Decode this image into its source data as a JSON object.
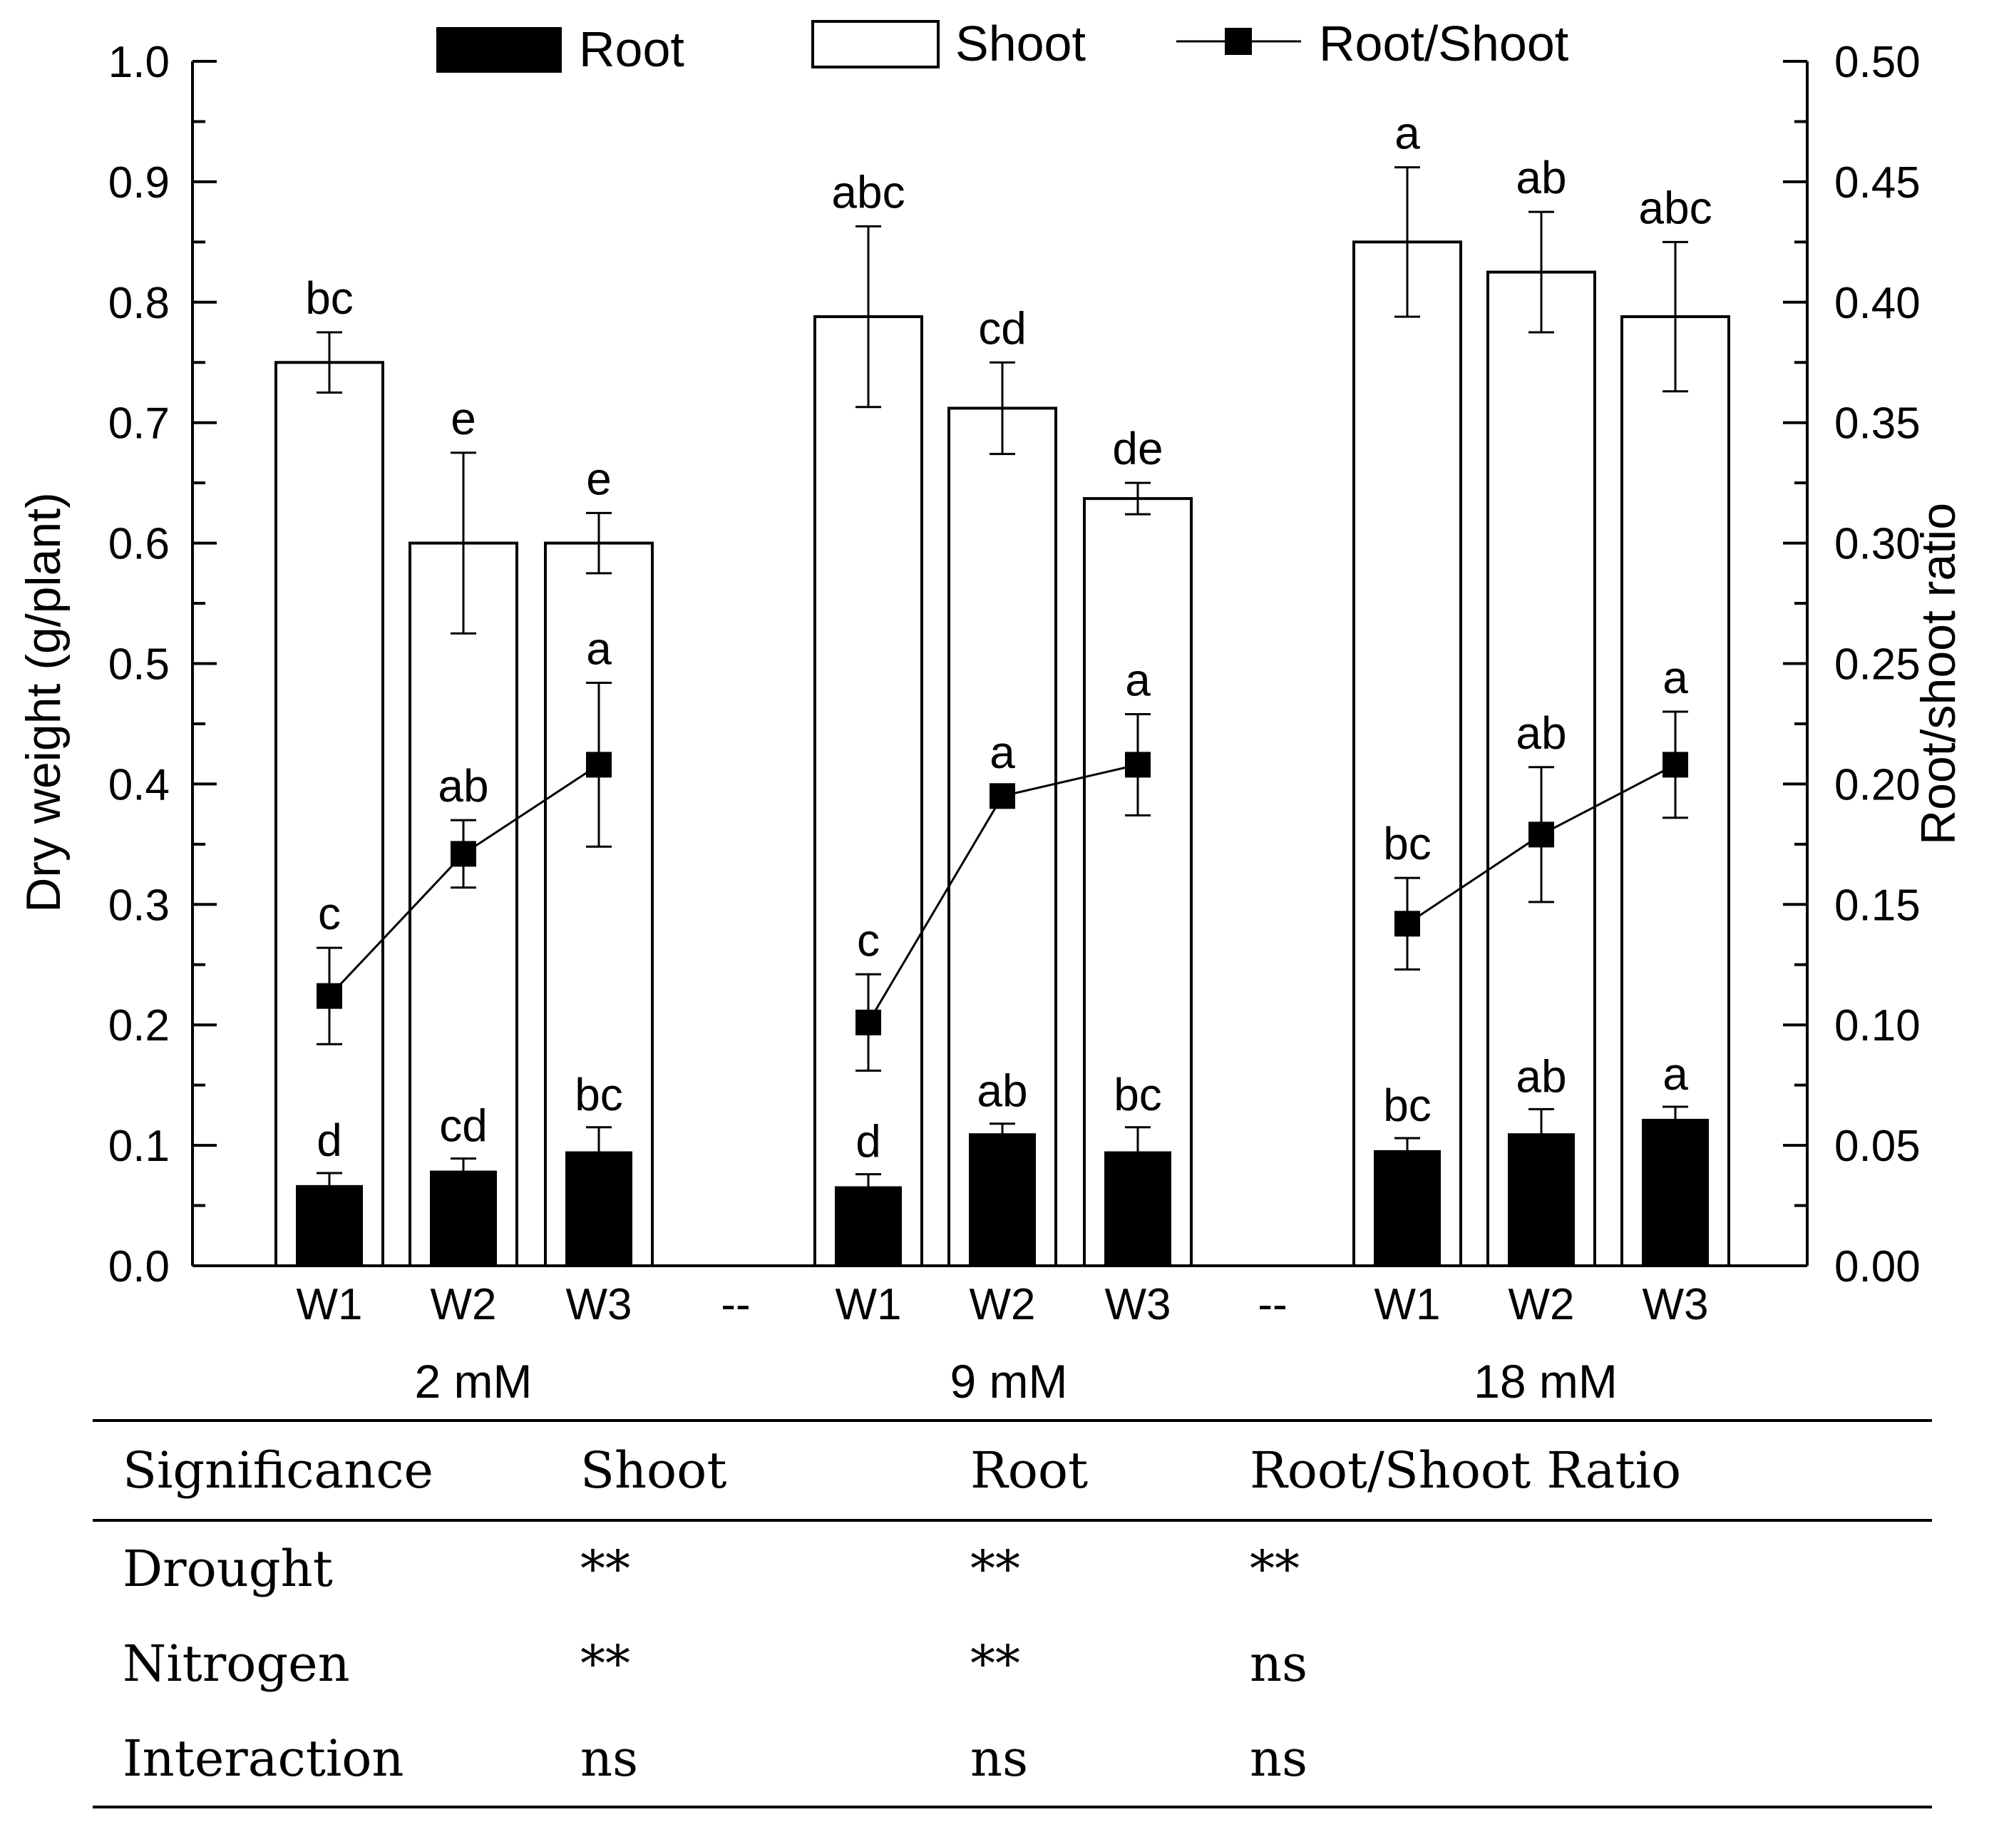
{
  "chart_data": {
    "type": "bar",
    "ylabel": "Dry weight (g/plant)",
    "ylabel_right": "Root/shoot ratio",
    "ylim": [
      0,
      1.0
    ],
    "ylim_right": [
      0,
      0.5
    ],
    "y_ticks": [
      "0.0",
      "0.1",
      "0.2",
      "0.3",
      "0.4",
      "0.5",
      "0.6",
      "0.7",
      "0.8",
      "0.9",
      "1.0"
    ],
    "y_ticks_right": [
      "0.00",
      "0.05",
      "0.10",
      "0.15",
      "0.20",
      "0.25",
      "0.30",
      "0.35",
      "0.40",
      "0.45",
      "0.50"
    ],
    "separator_label": "--",
    "groups": [
      {
        "label": "2 mM",
        "categories": [
          "W1",
          "W2",
          "W3"
        ]
      },
      {
        "label": "9 mM",
        "categories": [
          "W1",
          "W2",
          "W3"
        ]
      },
      {
        "label": "18 mM",
        "categories": [
          "W1",
          "W2",
          "W3"
        ]
      }
    ],
    "legend": [
      "Root",
      "Shoot",
      "Root/Shoot"
    ],
    "legend_position": "top",
    "series": [
      {
        "name": "Shoot",
        "axis": "left",
        "values": [
          0.75,
          0.6,
          0.6,
          0.788,
          0.712,
          0.637,
          0.85,
          0.825,
          0.788
        ],
        "errors": [
          0.025,
          0.075,
          0.025,
          0.075,
          0.038,
          0.013,
          0.062,
          0.05,
          0.062
        ],
        "letters": [
          "bc",
          "e",
          "e",
          "abc",
          "cd",
          "de",
          "a",
          "ab",
          "abc"
        ]
      },
      {
        "name": "Root",
        "axis": "left",
        "values": [
          0.067,
          0.079,
          0.095,
          0.066,
          0.11,
          0.095,
          0.096,
          0.11,
          0.122
        ],
        "errors": [
          0.01,
          0.01,
          0.02,
          0.01,
          0.008,
          0.02,
          0.01,
          0.02,
          0.01
        ],
        "letters": [
          "d",
          "cd",
          "bc",
          "d",
          "ab",
          "bc",
          "bc",
          "ab",
          "a"
        ]
      },
      {
        "name": "Root/Shoot",
        "axis": "right",
        "values": [
          0.112,
          0.171,
          0.208,
          0.101,
          0.195,
          0.208,
          0.142,
          0.179,
          0.208
        ],
        "errors": [
          0.02,
          0.014,
          0.034,
          0.02,
          0.004,
          0.021,
          0.019,
          0.028,
          0.022
        ],
        "letters": [
          "c",
          "ab",
          "a",
          "c",
          "a",
          "a",
          "bc",
          "ab",
          "a"
        ]
      }
    ]
  },
  "table": {
    "headers": [
      "Significance",
      "Shoot",
      "Root",
      "Root/Shoot Ratio"
    ],
    "rows": [
      [
        "Drought",
        "**",
        "**",
        "**"
      ],
      [
        "Nitrogen",
        "**",
        "**",
        "ns"
      ],
      [
        "Interaction",
        "ns",
        "ns",
        "ns"
      ]
    ]
  }
}
